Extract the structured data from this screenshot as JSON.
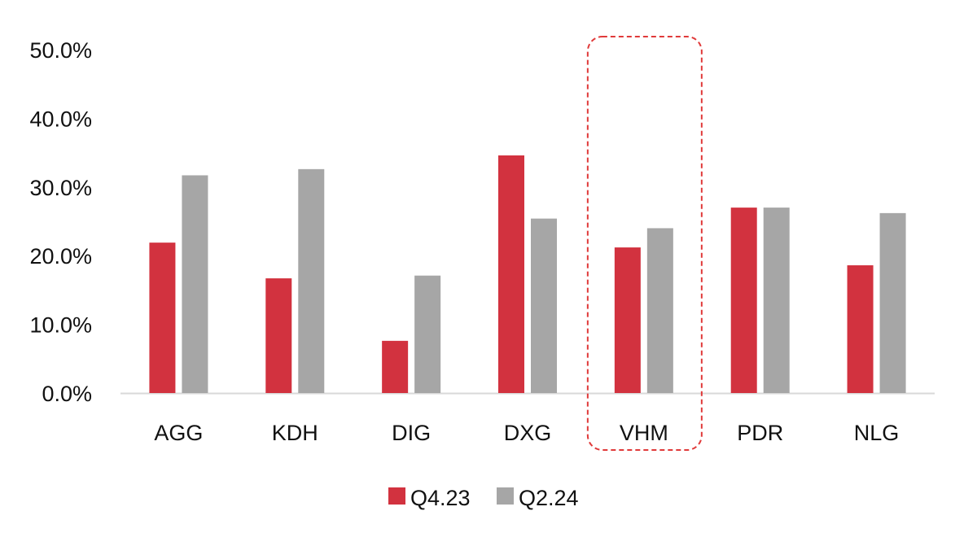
{
  "chart_data": {
    "type": "bar",
    "categories": [
      "AGG",
      "KDH",
      "DIG",
      "DXG",
      "VHM",
      "PDR",
      "NLG"
    ],
    "series": [
      {
        "name": "Q4.23",
        "color": "#d2323f",
        "values": [
          21.9,
          16.7,
          7.6,
          34.6,
          21.2,
          27.0,
          18.6
        ]
      },
      {
        "name": "Q2.24",
        "color": "#a6a6a6",
        "values": [
          31.7,
          32.6,
          17.1,
          25.4,
          24.0,
          27.0,
          26.2
        ]
      }
    ],
    "y_ticks": [
      "0.0%",
      "10.0%",
      "20.0%",
      "30.0%",
      "40.0%",
      "50.0%"
    ],
    "ylim": [
      0,
      50
    ],
    "grid": false,
    "legend_position": "bottom",
    "highlighted_category": "VHM",
    "highlight_color": "#e03a3a",
    "axis_color": "#d9d9d9"
  }
}
